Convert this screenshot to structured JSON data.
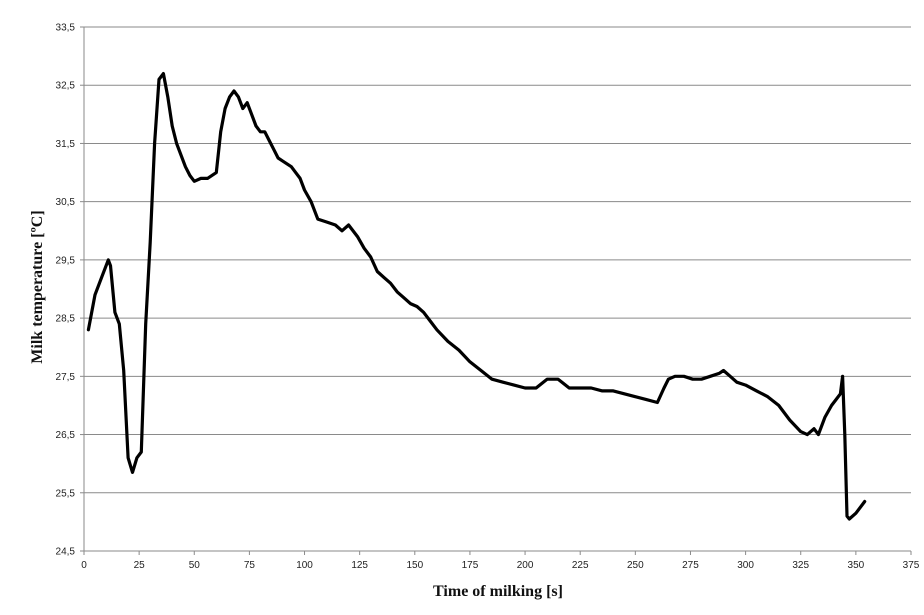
{
  "chart_data": {
    "type": "line",
    "title": "",
    "xlabel": "Time of milking [s]",
    "ylabel": "Milk temperature [ºC]",
    "xlim": [
      0,
      375
    ],
    "ylim": [
      24.5,
      33.5
    ],
    "x_ticks": [
      0,
      25,
      50,
      75,
      100,
      125,
      150,
      175,
      200,
      225,
      250,
      275,
      300,
      325,
      350,
      375
    ],
    "y_ticks": [
      24.5,
      25.5,
      26.5,
      27.5,
      28.5,
      29.5,
      30.5,
      31.5,
      32.5,
      33.5
    ],
    "y_tick_labels": [
      "24,5",
      "25,5",
      "26,5",
      "27,5",
      "28,5",
      "29,5",
      "30,5",
      "31,5",
      "32,5",
      "33,5"
    ],
    "grid": "horizontal",
    "series_color": "#000000",
    "series": [
      {
        "x": [
          2,
          5,
          8,
          11,
          12,
          14,
          16,
          18,
          20,
          22,
          24,
          26,
          28,
          30,
          32,
          34,
          36,
          38,
          40,
          42,
          44,
          46,
          48,
          50,
          53,
          56,
          60,
          62,
          64,
          66,
          68,
          70,
          72,
          74,
          76,
          78,
          80,
          82,
          84,
          86,
          88,
          90,
          92,
          94,
          96,
          98,
          100,
          103,
          106,
          110,
          114,
          117,
          120,
          124,
          127,
          130,
          133,
          136,
          139,
          142,
          145,
          148,
          151,
          154,
          157,
          160,
          165,
          170,
          175,
          180,
          185,
          190,
          195,
          200,
          205,
          210,
          215,
          220,
          225,
          230,
          235,
          240,
          245,
          250,
          255,
          260,
          263,
          265,
          268,
          272,
          276,
          280,
          284,
          288,
          290,
          293,
          296,
          300,
          305,
          310,
          315,
          320,
          325,
          328,
          331,
          333,
          336,
          339,
          341,
          343,
          344,
          345,
          346,
          347,
          350,
          354
        ],
        "y": [
          28.3,
          28.9,
          29.2,
          29.5,
          29.4,
          28.6,
          28.4,
          27.6,
          26.1,
          25.85,
          26.1,
          26.2,
          28.4,
          29.8,
          31.5,
          32.6,
          32.7,
          32.3,
          31.8,
          31.5,
          31.3,
          31.1,
          30.95,
          30.85,
          30.9,
          30.9,
          31.0,
          31.7,
          32.1,
          32.3,
          32.4,
          32.3,
          32.1,
          32.2,
          32.0,
          31.8,
          31.7,
          31.7,
          31.55,
          31.4,
          31.25,
          31.2,
          31.15,
          31.1,
          31.0,
          30.9,
          30.7,
          30.5,
          30.2,
          30.15,
          30.1,
          30.0,
          30.1,
          29.9,
          29.7,
          29.55,
          29.3,
          29.2,
          29.1,
          28.95,
          28.85,
          28.75,
          28.7,
          28.6,
          28.45,
          28.3,
          28.1,
          27.95,
          27.75,
          27.6,
          27.45,
          27.4,
          27.35,
          27.3,
          27.3,
          27.45,
          27.45,
          27.3,
          27.3,
          27.3,
          27.25,
          27.25,
          27.2,
          27.15,
          27.1,
          27.05,
          27.3,
          27.45,
          27.5,
          27.5,
          27.45,
          27.45,
          27.5,
          27.55,
          27.6,
          27.5,
          27.4,
          27.35,
          27.25,
          27.15,
          27.0,
          26.75,
          26.55,
          26.5,
          26.6,
          26.5,
          26.8,
          27.0,
          27.1,
          27.2,
          27.5,
          26.5,
          25.1,
          25.05,
          25.15,
          25.35
        ]
      }
    ]
  }
}
